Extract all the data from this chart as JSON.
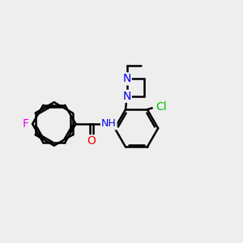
{
  "background_color": "#eeeeee",
  "bond_color": "#000000",
  "atom_colors": {
    "F": "#ee00ee",
    "O": "#ff0000",
    "N": "#0000ee",
    "Cl": "#00bb00",
    "H": "#808080",
    "C": "#000000"
  },
  "bond_width": 1.8,
  "font_size": 10,
  "figsize": [
    3.0,
    3.0
  ],
  "dpi": 100
}
